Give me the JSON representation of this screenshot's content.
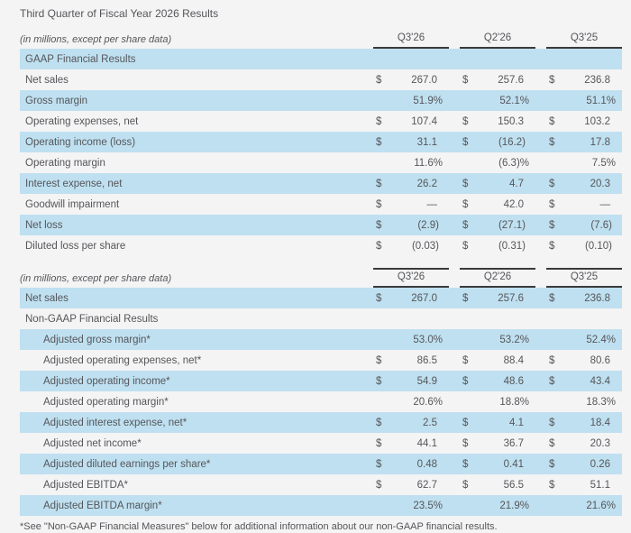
{
  "page": {
    "title": "Third Quarter of Fiscal Year 2026 Results",
    "footnote": "*See \"Non-GAAP Financial Measures\" below for additional information about our non-GAAP financial results."
  },
  "columns": [
    "Q3'26",
    "Q2'26",
    "Q3'25"
  ],
  "colors": {
    "background": "#f4f4f4",
    "row_blue": "#bfe0f0",
    "text": "#55565a",
    "rule": "#3a3a3a"
  },
  "gaap_table": {
    "caption": "(in millions, except per share data)",
    "rows": [
      {
        "label": "GAAP Financial Results",
        "section": true,
        "shade": "blue",
        "cells": []
      },
      {
        "label": "Net sales",
        "shade": "plain",
        "cells": [
          {
            "d": "$",
            "v": "267.0"
          },
          {
            "d": "$",
            "v": "257.6"
          },
          {
            "d": "$",
            "v": "236.8"
          }
        ]
      },
      {
        "label": "Gross margin",
        "shade": "blue",
        "cells": [
          {
            "d": "",
            "v": "51.9%"
          },
          {
            "d": "",
            "v": "52.1%"
          },
          {
            "d": "",
            "v": "51.1%"
          }
        ]
      },
      {
        "label": "Operating expenses, net",
        "shade": "plain",
        "cells": [
          {
            "d": "$",
            "v": "107.4"
          },
          {
            "d": "$",
            "v": "150.3"
          },
          {
            "d": "$",
            "v": "103.2"
          }
        ]
      },
      {
        "label": "Operating income (loss)",
        "shade": "blue",
        "cells": [
          {
            "d": "$",
            "v": "31.1"
          },
          {
            "d": "$",
            "v": "(16.2)"
          },
          {
            "d": "$",
            "v": "17.8"
          }
        ]
      },
      {
        "label": "Operating margin",
        "shade": "plain",
        "cells": [
          {
            "d": "",
            "v": "11.6%"
          },
          {
            "d": "",
            "v": "(6.3)%"
          },
          {
            "d": "",
            "v": "7.5%"
          }
        ]
      },
      {
        "label": "Interest expense, net",
        "shade": "blue",
        "cells": [
          {
            "d": "$",
            "v": "26.2"
          },
          {
            "d": "$",
            "v": "4.7"
          },
          {
            "d": "$",
            "v": "20.3"
          }
        ]
      },
      {
        "label": "Goodwill impairment",
        "shade": "plain",
        "cells": [
          {
            "d": "$",
            "v": "—"
          },
          {
            "d": "$",
            "v": "42.0"
          },
          {
            "d": "$",
            "v": "—"
          }
        ]
      },
      {
        "label": "Net loss",
        "shade": "blue",
        "cells": [
          {
            "d": "$",
            "v": "(2.9)"
          },
          {
            "d": "$",
            "v": "(27.1)"
          },
          {
            "d": "$",
            "v": "(7.6)"
          }
        ]
      },
      {
        "label": "Diluted loss per share",
        "shade": "plain",
        "cells": [
          {
            "d": "$",
            "v": "(0.03)"
          },
          {
            "d": "$",
            "v": "(0.31)"
          },
          {
            "d": "$",
            "v": "(0.10)"
          }
        ]
      }
    ]
  },
  "non_gaap_table": {
    "caption": "(in millions, except per share data)",
    "rows": [
      {
        "label": "Net sales",
        "shade": "blue",
        "cells": [
          {
            "d": "$",
            "v": "267.0"
          },
          {
            "d": "$",
            "v": "257.6"
          },
          {
            "d": "$",
            "v": "236.8"
          }
        ]
      },
      {
        "label": "Non-GAAP Financial Results",
        "section": true,
        "shade": "plain",
        "cells": []
      },
      {
        "label": "Adjusted gross margin*",
        "shade": "blue",
        "indent": true,
        "cells": [
          {
            "d": "",
            "v": "53.0%"
          },
          {
            "d": "",
            "v": "53.2%"
          },
          {
            "d": "",
            "v": "52.4%"
          }
        ]
      },
      {
        "label": "Adjusted operating expenses, net*",
        "shade": "plain",
        "indent": true,
        "cells": [
          {
            "d": "$",
            "v": "86.5"
          },
          {
            "d": "$",
            "v": "88.4"
          },
          {
            "d": "$",
            "v": "80.6"
          }
        ]
      },
      {
        "label": "Adjusted operating income*",
        "shade": "blue",
        "indent": true,
        "cells": [
          {
            "d": "$",
            "v": "54.9"
          },
          {
            "d": "$",
            "v": "48.6"
          },
          {
            "d": "$",
            "v": "43.4"
          }
        ]
      },
      {
        "label": "Adjusted operating margin*",
        "shade": "plain",
        "indent": true,
        "cells": [
          {
            "d": "",
            "v": "20.6%"
          },
          {
            "d": "",
            "v": "18.8%"
          },
          {
            "d": "",
            "v": "18.3%"
          }
        ]
      },
      {
        "label": "Adjusted interest expense, net*",
        "shade": "blue",
        "indent": true,
        "cells": [
          {
            "d": "$",
            "v": "2.5"
          },
          {
            "d": "$",
            "v": "4.1"
          },
          {
            "d": "$",
            "v": "18.4"
          }
        ]
      },
      {
        "label": "Adjusted net income*",
        "shade": "plain",
        "indent": true,
        "cells": [
          {
            "d": "$",
            "v": "44.1"
          },
          {
            "d": "$",
            "v": "36.7"
          },
          {
            "d": "$",
            "v": "20.3"
          }
        ]
      },
      {
        "label": "Adjusted diluted earnings per share*",
        "shade": "blue",
        "indent": true,
        "cells": [
          {
            "d": "$",
            "v": "0.48"
          },
          {
            "d": "$",
            "v": "0.41"
          },
          {
            "d": "$",
            "v": "0.26"
          }
        ]
      },
      {
        "label": "Adjusted EBITDA*",
        "shade": "plain",
        "indent": true,
        "cells": [
          {
            "d": "$",
            "v": "62.7"
          },
          {
            "d": "$",
            "v": "56.5"
          },
          {
            "d": "$",
            "v": "51.1"
          }
        ]
      },
      {
        "label": "Adjusted EBITDA margin*",
        "shade": "blue",
        "indent": true,
        "cells": [
          {
            "d": "",
            "v": "23.5%"
          },
          {
            "d": "",
            "v": "21.9%"
          },
          {
            "d": "",
            "v": "21.6%"
          }
        ]
      }
    ]
  }
}
